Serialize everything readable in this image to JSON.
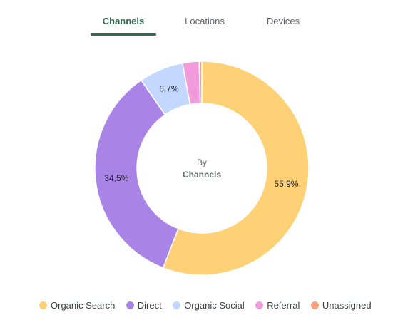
{
  "tabs": [
    {
      "label": "Channels",
      "active": true
    },
    {
      "label": "Locations",
      "active": false
    },
    {
      "label": "Devices",
      "active": false
    }
  ],
  "center": {
    "line1": "By",
    "line2": "Channels"
  },
  "chart_data": {
    "type": "pie",
    "categories": [
      "Organic Search",
      "Direct",
      "Organic Social",
      "Referral",
      "Unassigned"
    ],
    "values": [
      55.9,
      34.5,
      6.7,
      2.5,
      0.4
    ],
    "labels": [
      "55,9%",
      "34,5%",
      "6,7%",
      "",
      ""
    ],
    "colors": [
      "#ffd176",
      "#a984e6",
      "#c4d7ff",
      "#f29bdc",
      "#f6a07e"
    ],
    "legend_position": "bottom"
  }
}
